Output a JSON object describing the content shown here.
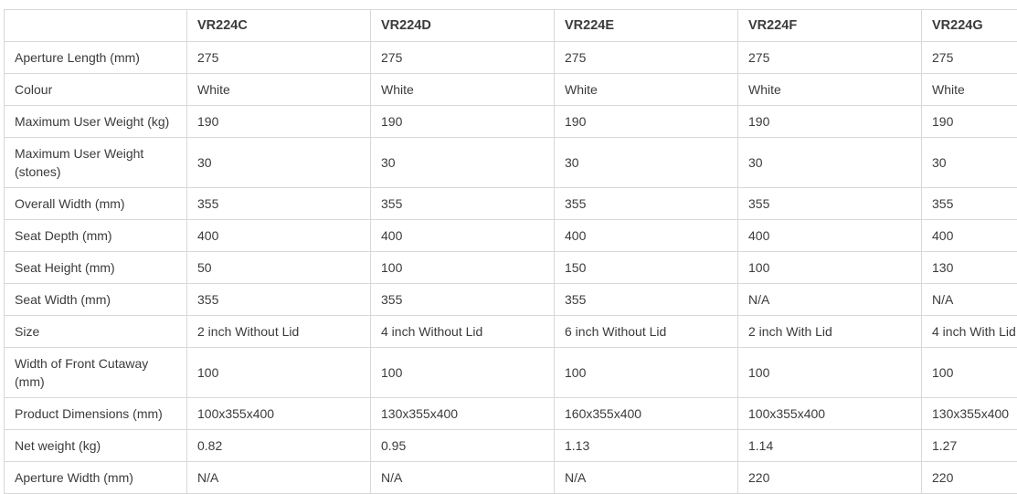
{
  "colors": {
    "text": "#3b3b3b",
    "border": "#d8d8d8",
    "background": "#ffffff"
  },
  "table": {
    "corner_label": "",
    "columns": [
      "VR224C",
      "VR224D",
      "VR224E",
      "VR224F",
      "VR224G"
    ],
    "rows": [
      {
        "label": "Aperture Length (mm)",
        "values": [
          "275",
          "275",
          "275",
          "275",
          "275"
        ]
      },
      {
        "label": "Colour",
        "values": [
          "White",
          "White",
          "White",
          "White",
          "White"
        ]
      },
      {
        "label": "Maximum User Weight (kg)",
        "values": [
          "190",
          "190",
          "190",
          "190",
          "190"
        ]
      },
      {
        "label": "Maximum User Weight (stones)",
        "values": [
          "30",
          "30",
          "30",
          "30",
          "30"
        ]
      },
      {
        "label": "Overall Width (mm)",
        "values": [
          "355",
          "355",
          "355",
          "355",
          "355"
        ]
      },
      {
        "label": "Seat Depth (mm)",
        "values": [
          "400",
          "400",
          "400",
          "400",
          "400"
        ]
      },
      {
        "label": "Seat Height (mm)",
        "values": [
          "50",
          "100",
          "150",
          "100",
          "130"
        ]
      },
      {
        "label": "Seat Width (mm)",
        "values": [
          "355",
          "355",
          "355",
          "N/A",
          "N/A"
        ]
      },
      {
        "label": "Size",
        "values": [
          "2 inch Without Lid",
          "4 inch Without Lid",
          "6 inch Without Lid",
          "2 inch With Lid",
          "4 inch With Lid"
        ]
      },
      {
        "label": "Width of Front Cutaway (mm)",
        "values": [
          "100",
          "100",
          "100",
          "100",
          "100"
        ]
      },
      {
        "label": "Product Dimensions (mm)",
        "values": [
          "100x355x400",
          "130x355x400",
          "160x355x400",
          "100x355x400",
          "130x355x400"
        ]
      },
      {
        "label": "Net weight (kg)",
        "values": [
          "0.82",
          "0.95",
          "1.13",
          "1.14",
          "1.27"
        ]
      },
      {
        "label": "Aperture Width (mm)",
        "values": [
          "N/A",
          "N/A",
          "N/A",
          "220",
          "220"
        ]
      }
    ]
  }
}
